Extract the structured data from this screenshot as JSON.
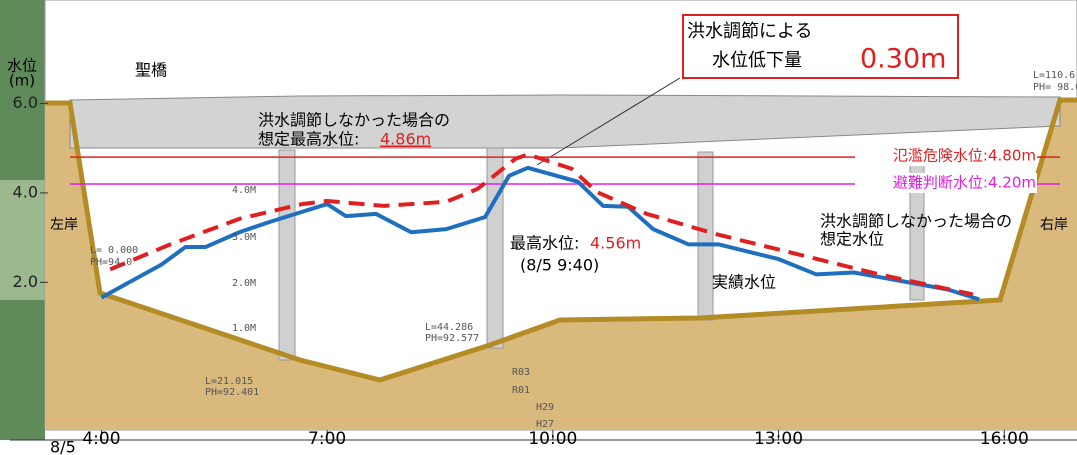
{
  "chart_data": {
    "type": "line",
    "y_label": [
      "水位",
      "(m)"
    ],
    "date_label": "8/5",
    "xlim": [
      "3:15",
      "16:58"
    ],
    "xticks": [
      "4:00",
      "7:00",
      "10:00",
      "13:00",
      "16:00"
    ],
    "ylim": [
      -1.3,
      8.2
    ],
    "yticks": [
      {
        "value": 2,
        "label": "2.0"
      },
      {
        "value": 4,
        "label": "4.0"
      },
      {
        "value": 6,
        "label": "6.0"
      }
    ],
    "series": [
      {
        "name": [
          "実績水位"
        ],
        "color": "#1f6fc0",
        "dashed": false,
        "x": [
          "4:00",
          "4:48",
          "5:07",
          "5:23",
          "5:50",
          "6:14",
          "7:00",
          "7:15",
          "7:39",
          "8:07",
          "8:35",
          "9:06",
          "9:25",
          "9:40",
          "10:20",
          "10:40",
          "11:00",
          "11:20",
          "11:48",
          "12:12",
          "13:00",
          "13:30",
          "14:00",
          "14:30",
          "15:15",
          "15:40"
        ],
        "values": [
          1.66,
          2.4,
          2.79,
          2.79,
          3.12,
          3.35,
          3.75,
          3.48,
          3.53,
          3.12,
          3.19,
          3.46,
          4.38,
          4.56,
          4.25,
          3.71,
          3.69,
          3.19,
          2.85,
          2.85,
          2.52,
          2.18,
          2.22,
          2.07,
          1.84,
          1.62
        ]
      },
      {
        "name": [
          "洪水調節しなかった場合の",
          "想定水位"
        ],
        "color": "#e02020",
        "dashed": true,
        "x": [
          "4:07",
          "4:55",
          "5:50",
          "6:40",
          "7:00",
          "7:45",
          "8:35",
          "9:00",
          "9:30",
          "9:40",
          "10:15",
          "10:35",
          "11:15",
          "12:10",
          "13:15",
          "14:20",
          "15:35"
        ],
        "values": [
          2.29,
          2.85,
          3.42,
          3.75,
          3.82,
          3.71,
          3.8,
          4.09,
          4.76,
          4.86,
          4.54,
          4.02,
          3.53,
          3.08,
          2.63,
          2.18,
          1.73
        ]
      }
    ],
    "reference_lines": [
      {
        "value": 4.8,
        "label": "氾濫危険水位:4.80m",
        "color": "#e02020"
      },
      {
        "value": 4.2,
        "label": "避難判断水位:4.20m",
        "color": "#e020e0"
      }
    ],
    "annotations": {
      "reduction": [
        "洪水調節による",
        "水位低下量",
        "0.30m"
      ],
      "no_control_peak": [
        "洪水調節しなかった場合の",
        "想定最高水位:",
        "4.86m"
      ],
      "actual_peak": [
        "最高水位:",
        "4.56m",
        "(8/5 9:40)"
      ],
      "bridge": "聖橋",
      "left_bank": "左岸",
      "right_bank": "右岸"
    },
    "drawing_notes": [
      "L= 0.000",
      "PH=94.0",
      "L=21.015",
      "PH=92.401",
      "L=44.286",
      "PH=92.577",
      "L=110.6",
      "PH= 98.0",
      "4.0M",
      "3.0M",
      "2.0M",
      "1.0M",
      "R03",
      "R01",
      "H29",
      "H27"
    ]
  }
}
